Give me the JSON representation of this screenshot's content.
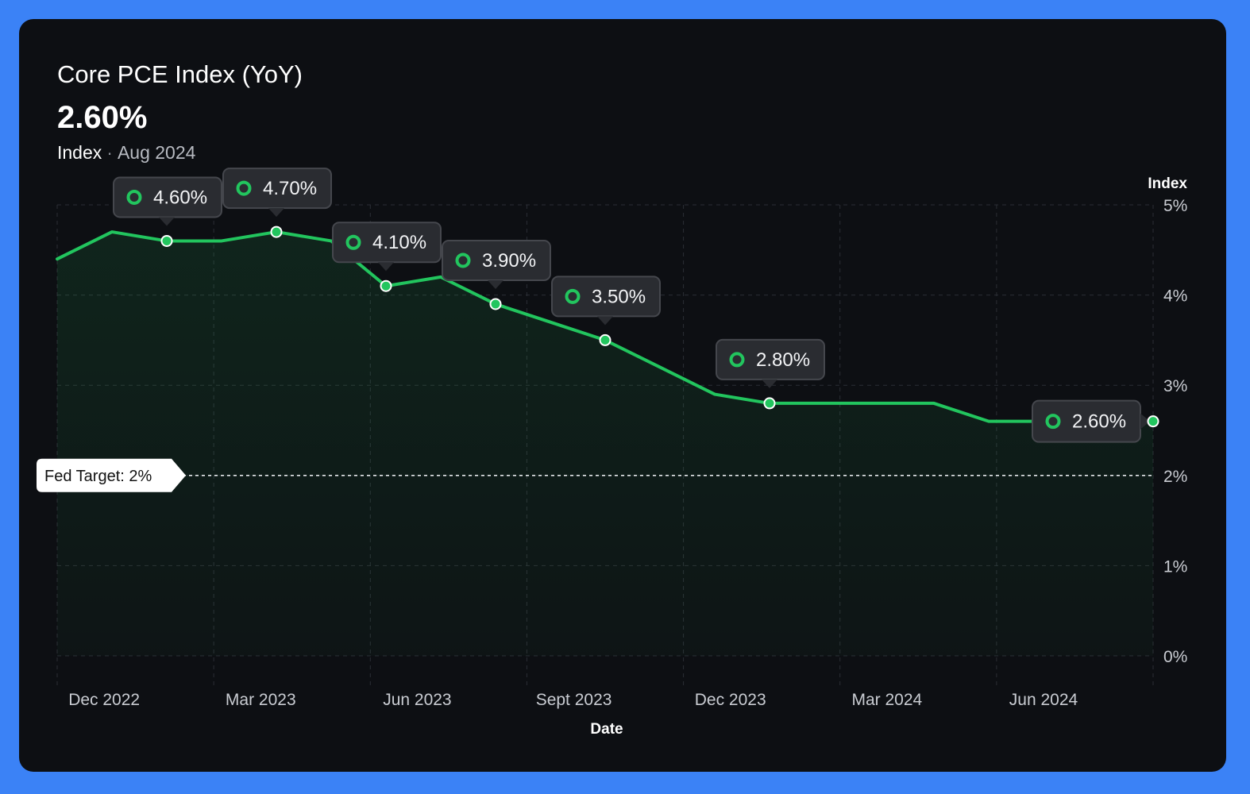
{
  "header": {
    "title": "Core PCE Index (YoY)",
    "value": "2.60%",
    "label": "Index",
    "separator": "·",
    "date": "Aug 2024"
  },
  "colors": {
    "line": "#22c55e",
    "background": "#0d0f13",
    "frame": "#3b82f6",
    "tooltip_bg": "#2a2c31"
  },
  "chart_data": {
    "type": "line",
    "title": "Core PCE Index (YoY)",
    "xlabel": "Date",
    "ylabel": "Index",
    "ylim": [
      0,
      5
    ],
    "grid": true,
    "x_tick_labels": [
      "Dec 2022",
      "Mar 2023",
      "Jun 2023",
      "Sept 2023",
      "Dec 2023",
      "Mar 2024",
      "Jun 2024"
    ],
    "y_tick_labels": [
      "0%",
      "1%",
      "2%",
      "3%",
      "4%",
      "5%"
    ],
    "series": [
      {
        "name": "Core PCE Index (YoY)",
        "values": [
          4.4,
          4.7,
          4.6,
          4.6,
          4.7,
          4.6,
          4.1,
          4.2,
          3.9,
          3.7,
          3.5,
          3.2,
          2.9,
          2.8,
          2.8,
          2.8,
          2.8,
          2.6,
          2.6,
          2.6,
          2.6
        ]
      }
    ],
    "annotations": [
      {
        "index": 2,
        "label": "4.60%"
      },
      {
        "index": 4,
        "label": "4.70%"
      },
      {
        "index": 6,
        "label": "4.10%"
      },
      {
        "index": 8,
        "label": "3.90%"
      },
      {
        "index": 10,
        "label": "3.50%"
      },
      {
        "index": 13,
        "label": "2.80%"
      },
      {
        "index": 20,
        "label": "2.60%"
      }
    ],
    "reference_line": {
      "value": 2,
      "label": "Fed Target: 2%"
    }
  }
}
